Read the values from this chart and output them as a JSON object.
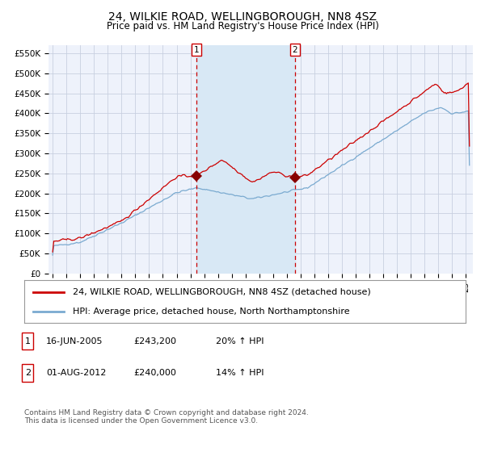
{
  "title": "24, WILKIE ROAD, WELLINGBOROUGH, NN8 4SZ",
  "subtitle": "Price paid vs. HM Land Registry's House Price Index (HPI)",
  "legend_line1": "24, WILKIE ROAD, WELLINGBOROUGH, NN8 4SZ (detached house)",
  "legend_line2": "HPI: Average price, detached house, North Northamptonshire",
  "footnote": "Contains HM Land Registry data © Crown copyright and database right 2024.\nThis data is licensed under the Open Government Licence v3.0.",
  "sale1": {
    "label": "1",
    "date": "16-JUN-2005",
    "price": 243200,
    "pct": "20%",
    "direction": "↑",
    "x": 2005.46
  },
  "sale2": {
    "label": "2",
    "date": "01-AUG-2012",
    "price": 240000,
    "pct": "14%",
    "direction": "↑",
    "x": 2012.58
  },
  "ylim": [
    0,
    570000
  ],
  "xlim_start": 1994.7,
  "xlim_end": 2025.5,
  "bg_color": "#ffffff",
  "plot_bg_color": "#eef2fb",
  "grid_color": "#c8d0e0",
  "shade_color": "#d8e8f5",
  "red_line_color": "#cc0000",
  "blue_line_color": "#7aaad0",
  "dashed_line_color": "#cc0000",
  "marker_color": "#880000",
  "title_fontsize": 10,
  "subtitle_fontsize": 8.5,
  "tick_fontsize": 7.5,
  "legend_fontsize": 8,
  "footnote_fontsize": 6.5
}
